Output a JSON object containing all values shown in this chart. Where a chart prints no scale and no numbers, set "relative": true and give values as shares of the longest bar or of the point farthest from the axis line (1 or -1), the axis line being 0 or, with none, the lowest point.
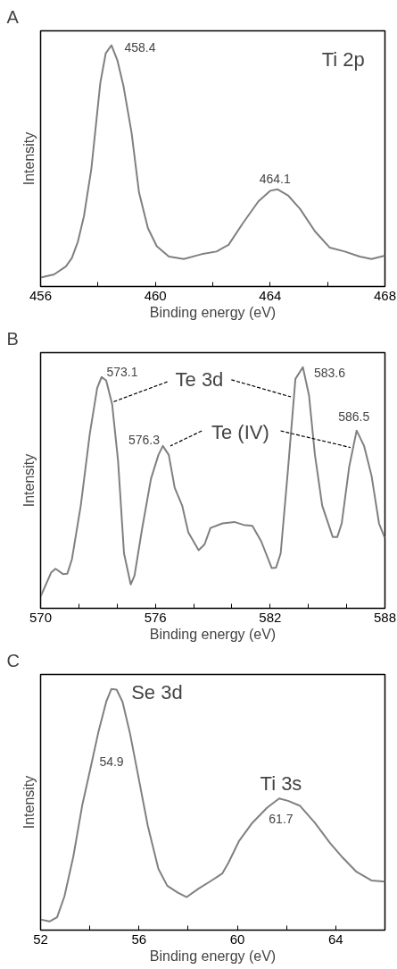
{
  "chart_data": [
    {
      "type": "line",
      "title": "A",
      "xlabel": "Binding energy (eV)",
      "ylabel": "Intensity",
      "relative": true,
      "tick_labels": "x",
      "grid": false,
      "marker": "none",
      "line_style": "solid",
      "xlim": [
        456,
        468
      ],
      "xticks": [
        456,
        {
          "value": 458,
          "label": null
        },
        460,
        {
          "value": 462,
          "label": null
        },
        464,
        {
          "value": 466,
          "label": null
        },
        468
      ],
      "series": [
        {
          "color": "#808080",
          "x": [
            456.0,
            456.47,
            456.88,
            457.09,
            457.3,
            457.51,
            457.77,
            458.08,
            458.27,
            458.47,
            458.68,
            458.89,
            459.17,
            459.43,
            459.74,
            460.05,
            460.47,
            460.99,
            461.61,
            462.13,
            462.55,
            463.07,
            463.59,
            464.0,
            464.26,
            464.62,
            465.04,
            465.56,
            466.08,
            466.6,
            467.12,
            467.53,
            468.0
          ],
          "values": [
            0.037,
            0.05,
            0.083,
            0.118,
            0.186,
            0.291,
            0.489,
            0.843,
            0.967,
            1.0,
            0.936,
            0.83,
            0.638,
            0.39,
            0.242,
            0.167,
            0.124,
            0.114,
            0.134,
            0.145,
            0.173,
            0.266,
            0.353,
            0.397,
            0.403,
            0.378,
            0.322,
            0.229,
            0.161,
            0.145,
            0.124,
            0.114,
            0.128
          ]
        }
      ],
      "annotations": [
        {
          "text": "458.4",
          "x": 458.47,
          "y": 1.0
        },
        {
          "text": "464.1",
          "x": 464.26,
          "y": 0.403
        },
        "Ti 2p"
      ]
    },
    {
      "type": "line",
      "title": "B",
      "xlabel": "Binding energy (eV)",
      "ylabel": "Intensity",
      "relative": true,
      "tick_labels": "x",
      "grid": false,
      "marker": "none",
      "line_style": "solid",
      "xlim": [
        570,
        588
      ],
      "xticks": [
        570,
        {
          "value": 572,
          "label": null
        },
        {
          "value": 574,
          "label": null
        },
        576,
        {
          "value": 578,
          "label": null
        },
        {
          "value": 580,
          "label": null
        },
        582,
        {
          "value": 584,
          "label": null
        },
        {
          "value": 586,
          "label": null
        },
        588
      ],
      "series": [
        {
          "color": "#808080",
          "x": [
            570.0,
            570.55,
            570.78,
            571.17,
            571.4,
            571.64,
            572.1,
            572.57,
            572.96,
            573.19,
            573.43,
            573.74,
            574.05,
            574.36,
            574.71,
            574.91,
            575.3,
            575.77,
            576.16,
            576.39,
            576.7,
            577.01,
            577.4,
            577.72,
            578.26,
            578.57,
            578.88,
            579.51,
            580.13,
            580.6,
            581.07,
            581.53,
            582.08,
            582.31,
            582.55,
            582.93,
            583.32,
            583.71,
            584.03,
            584.34,
            584.72,
            585.27,
            585.51,
            585.74,
            586.13,
            586.52,
            586.91,
            587.3,
            587.69,
            588.0
          ],
          "values": [
            0.049,
            0.148,
            0.164,
            0.142,
            0.144,
            0.204,
            0.426,
            0.722,
            0.914,
            0.959,
            0.944,
            0.846,
            0.611,
            0.228,
            0.099,
            0.136,
            0.327,
            0.537,
            0.636,
            0.673,
            0.636,
            0.5,
            0.426,
            0.315,
            0.241,
            0.265,
            0.333,
            0.352,
            0.358,
            0.346,
            0.342,
            0.278,
            0.167,
            0.169,
            0.228,
            0.574,
            0.951,
            1.0,
            0.883,
            0.636,
            0.426,
            0.296,
            0.296,
            0.352,
            0.586,
            0.737,
            0.673,
            0.549,
            0.352,
            0.29
          ]
        }
      ],
      "annotations": [
        {
          "text": "573.1",
          "x": 573.19,
          "y": 0.959
        },
        {
          "text": "583.6",
          "x": 583.71,
          "y": 1.0
        },
        {
          "text": "576.3",
          "x": 576.39,
          "y": 0.673
        },
        {
          "text": "586.5",
          "x": 586.52,
          "y": 0.737
        },
        "Te 3d",
        "Te (IV)"
      ]
    },
    {
      "type": "line",
      "title": "C",
      "xlabel": "Binding energy (eV)",
      "ylabel": "Intensity",
      "relative": true,
      "tick_labels": "x",
      "grid": false,
      "marker": "none",
      "line_style": "solid",
      "xlim": [
        52,
        66
      ],
      "xticks": [
        52,
        {
          "value": 54,
          "label": null
        },
        56,
        {
          "value": 58,
          "label": null
        },
        60,
        {
          "value": 62,
          "label": null
        },
        64
      ],
      "series": [
        {
          "color": "#808080",
          "x": [
            52.0,
            52.36,
            52.67,
            52.97,
            53.33,
            53.7,
            54.06,
            54.36,
            54.67,
            54.88,
            55.09,
            55.33,
            55.64,
            56.0,
            56.36,
            56.79,
            57.15,
            57.58,
            57.94,
            58.42,
            58.91,
            59.39,
            59.64,
            60.06,
            60.61,
            61.21,
            61.7,
            62.06,
            62.55,
            63.15,
            63.76,
            64.24,
            64.85,
            65.45,
            66.0
          ],
          "values": [
            0.044,
            0.036,
            0.053,
            0.14,
            0.305,
            0.521,
            0.686,
            0.826,
            0.947,
            1.0,
            0.997,
            0.947,
            0.813,
            0.623,
            0.432,
            0.254,
            0.184,
            0.155,
            0.137,
            0.172,
            0.203,
            0.235,
            0.28,
            0.368,
            0.445,
            0.508,
            0.546,
            0.536,
            0.515,
            0.445,
            0.362,
            0.305,
            0.241,
            0.206,
            0.201
          ]
        }
      ],
      "annotations": [
        "54.9",
        {
          "text": "61.7",
          "x": 61.7,
          "y": 0.546
        },
        {
          "text": "Se 3d",
          "x": 54.88,
          "y": 1.0
        },
        {
          "text": "Ti 3s",
          "x": 61.7,
          "y": 0.546
        }
      ]
    }
  ]
}
